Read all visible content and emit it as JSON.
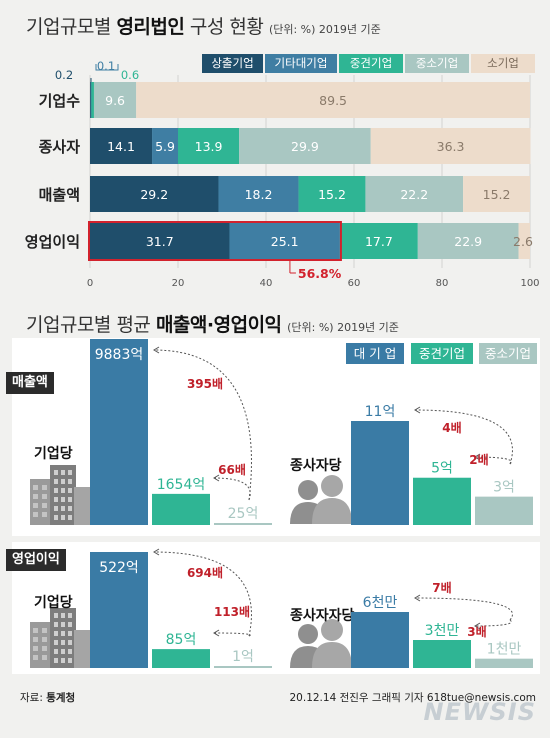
{
  "top": {
    "title_pre": "기업규모별",
    "title_bold": "영리법인",
    "title_post": "구성 현황",
    "unit": "(단위: %) 2019년 기준",
    "legend": [
      {
        "label": "상출기업",
        "color": "#1f4e6b"
      },
      {
        "label": "기타대기업",
        "color": "#3f7ea3"
      },
      {
        "label": "중견기업",
        "color": "#2fb594"
      },
      {
        "label": "중소기업",
        "color": "#a9c7c2"
      },
      {
        "label": "소기업",
        "color": "#eddccb"
      }
    ],
    "highlight_label": "56.8%",
    "small_labels": [
      "0.2",
      "0.1",
      "0.6"
    ]
  },
  "chart_data": [
    {
      "type": "bar",
      "orientation": "horizontal-stacked",
      "categories": [
        "기업수",
        "종사자",
        "매출액",
        "영업이익"
      ],
      "series": [
        {
          "name": "상출기업",
          "values": [
            0.2,
            14.1,
            29.2,
            31.7
          ],
          "labels": [
            "",
            "14.1",
            "29.2",
            "31.7"
          ]
        },
        {
          "name": "기타대기업",
          "values": [
            0.1,
            5.9,
            18.2,
            25.1
          ],
          "labels": [
            "",
            "5.9",
            "18.2",
            "25.1"
          ]
        },
        {
          "name": "중견기업",
          "values": [
            0.6,
            13.9,
            15.2,
            17.7
          ],
          "labels": [
            "",
            "13.9",
            "15.2",
            "17.7"
          ]
        },
        {
          "name": "중소기업",
          "values": [
            9.6,
            29.9,
            22.2,
            22.9
          ],
          "labels": [
            "9.6",
            "29.9",
            "22.2",
            "22.9"
          ]
        },
        {
          "name": "소기업",
          "values": [
            89.5,
            36.3,
            15.2,
            2.6
          ],
          "labels": [
            "89.5",
            "36.3",
            "15.2",
            "2.6"
          ]
        }
      ],
      "x_ticks": [
        "0",
        "20",
        "40",
        "60",
        "80",
        "100"
      ],
      "xlim": [
        0,
        100
      ]
    },
    {
      "type": "bar",
      "group": "매출액",
      "subgroups": [
        {
          "name": "기업당",
          "categories": [
            "대기업",
            "중견기업",
            "중소기업"
          ],
          "values": [
            9883,
            1654,
            25
          ],
          "labels": [
            "9883억",
            "1654억",
            "25억"
          ],
          "unit": "억",
          "ratios": [
            "395배",
            "66배"
          ]
        },
        {
          "name": "종사자당",
          "categories": [
            "대기업",
            "중견기업",
            "중소기업"
          ],
          "values": [
            11,
            5,
            3
          ],
          "labels": [
            "11억",
            "5억",
            "3억"
          ],
          "unit": "억",
          "ratios": [
            "4배",
            "2배"
          ]
        }
      ]
    },
    {
      "type": "bar",
      "group": "영업이익",
      "subgroups": [
        {
          "name": "기업당",
          "categories": [
            "대기업",
            "중견기업",
            "중소기업"
          ],
          "values": [
            522,
            85,
            1
          ],
          "labels": [
            "522억",
            "85억",
            "1억"
          ],
          "unit": "억",
          "ratios": [
            "694배",
            "113배"
          ]
        },
        {
          "name": "종사자자당",
          "categories": [
            "대기업",
            "중견기업",
            "중소기업"
          ],
          "values": [
            6000,
            3000,
            1000
          ],
          "labels": [
            "6천만",
            "3천만",
            "1천만"
          ],
          "unit": "만원",
          "ratios": [
            "7배",
            "3배"
          ]
        }
      ]
    }
  ],
  "bottom": {
    "title_pre": "기업규모별 평균",
    "title_bold": "매출액·영업이익",
    "unit": "(단위: %) 2019년 기준",
    "legend": [
      {
        "label": "대 기 업",
        "color": "#3a7ba5"
      },
      {
        "label": "중견기업",
        "color": "#2fb594"
      },
      {
        "label": "중소기업",
        "color": "#a9c7c2"
      }
    ]
  },
  "footer": {
    "source_label": "자료:",
    "source_value": "통계청",
    "credit": "20.12.14 전진우 그래픽 기자 618tue@newsis.com",
    "watermark": "NEWSIS"
  },
  "colors": {
    "big": "#3a7ba5",
    "mid": "#2fb594",
    "small": "#a9c7c2",
    "ratio": "#c0202a",
    "highlight": "#d2222d"
  }
}
